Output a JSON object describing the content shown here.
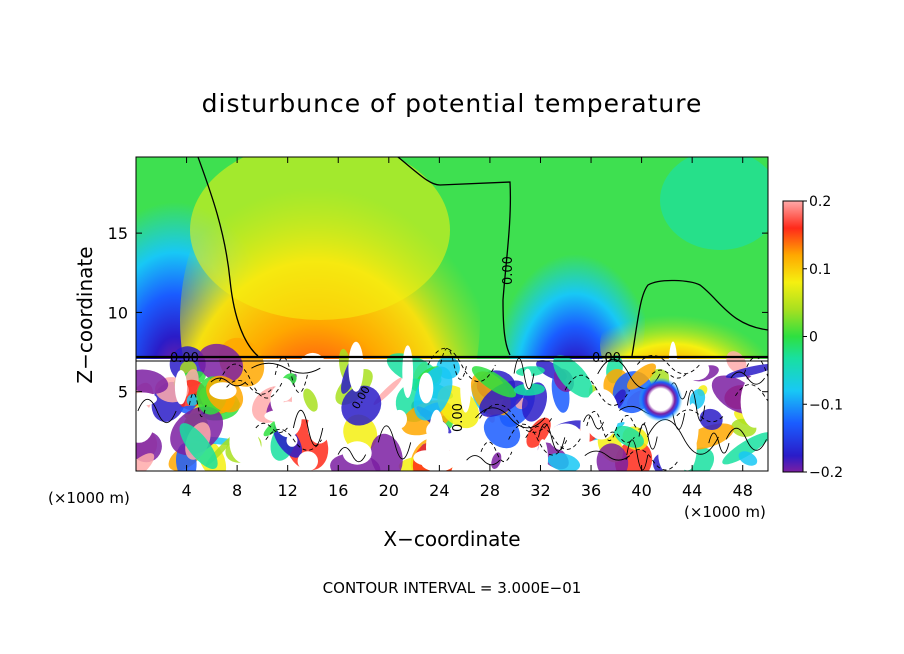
{
  "chart_data": {
    "type": "heatmap",
    "title": "disturbunce of potential temperature",
    "xlabel": "X−coordinate",
    "ylabel": "Z−coordinate",
    "x_unit_left": "(×1000 m)",
    "x_unit_right": "(×1000 m)",
    "footer": "CONTOUR INTERVAL = 3.000E−01",
    "xlim": [
      0,
      50
    ],
    "ylim": [
      0,
      19.8
    ],
    "x_ticks": [
      "4",
      "8",
      "12",
      "16",
      "20",
      "24",
      "28",
      "32",
      "36",
      "40",
      "44",
      "48"
    ],
    "y_ticks": [
      "5",
      "10",
      "15"
    ],
    "colorbar": {
      "range": [
        -0.2,
        0.2
      ],
      "tick_labels": [
        "0.2",
        "0.1",
        "0",
        "−0.1",
        "−0.2"
      ]
    },
    "contour_labels": [
      "0.00",
      "0.00",
      "0.00",
      "0.00",
      "0.00"
    ],
    "regions": [
      {
        "x": [
          0,
          10
        ],
        "z": [
          8,
          19.8
        ],
        "value": -0.1
      },
      {
        "x": [
          2,
          6
        ],
        "z": [
          8,
          12
        ],
        "value": -0.2
      },
      {
        "x": [
          10,
          27
        ],
        "z": [
          8,
          19
        ],
        "value": 0.08
      },
      {
        "x": [
          11,
          18
        ],
        "z": [
          8,
          12
        ],
        "value": 0.15
      },
      {
        "x": [
          27,
          40
        ],
        "z": [
          8,
          15
        ],
        "value": -0.12
      },
      {
        "x": [
          33,
          37
        ],
        "z": [
          8,
          11
        ],
        "value": -0.2
      },
      {
        "x": [
          40,
          50
        ],
        "z": [
          8,
          12
        ],
        "value": 0.08
      },
      {
        "x": [
          0,
          50
        ],
        "z": [
          0,
          7.3
        ],
        "value": 0
      }
    ]
  }
}
